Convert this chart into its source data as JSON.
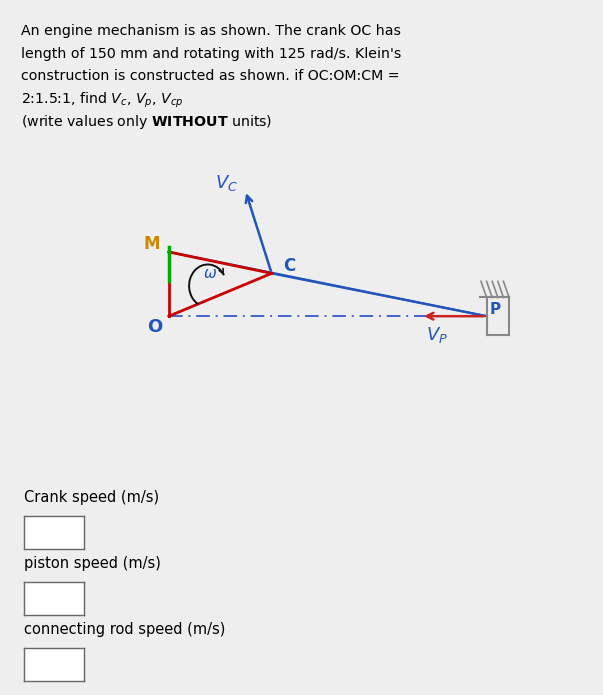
{
  "bg_color": "#eeeeee",
  "O": [
    0.2,
    0.565
  ],
  "C": [
    0.42,
    0.645
  ],
  "M": [
    0.2,
    0.685
  ],
  "P": [
    0.88,
    0.565
  ],
  "triangle_color": "#cc0000",
  "blue_color": "#2255bb",
  "red_arrow_color": "#cc2222",
  "dashed_color": "#4466cc",
  "green_color": "#00aa00",
  "amber_color": "#cc8800",
  "black": "#111111",
  "gray": "#888888",
  "title_lines": [
    "An engine mechanism is as shown. The crank OC has",
    "length of 150 mm and rotating with 125 rad/s. Klein's",
    "construction is constructed as shown. if OC:OM:CM =",
    "2:1.5:1, find $V_c$, $V_p$, $V_{cp}$",
    "(write values only $\\mathbf{WITHOUT}$ units)"
  ],
  "input_labels": [
    "Crank speed (m/s)",
    "piston speed (m/s)",
    "connecting rod speed (m/s)"
  ]
}
